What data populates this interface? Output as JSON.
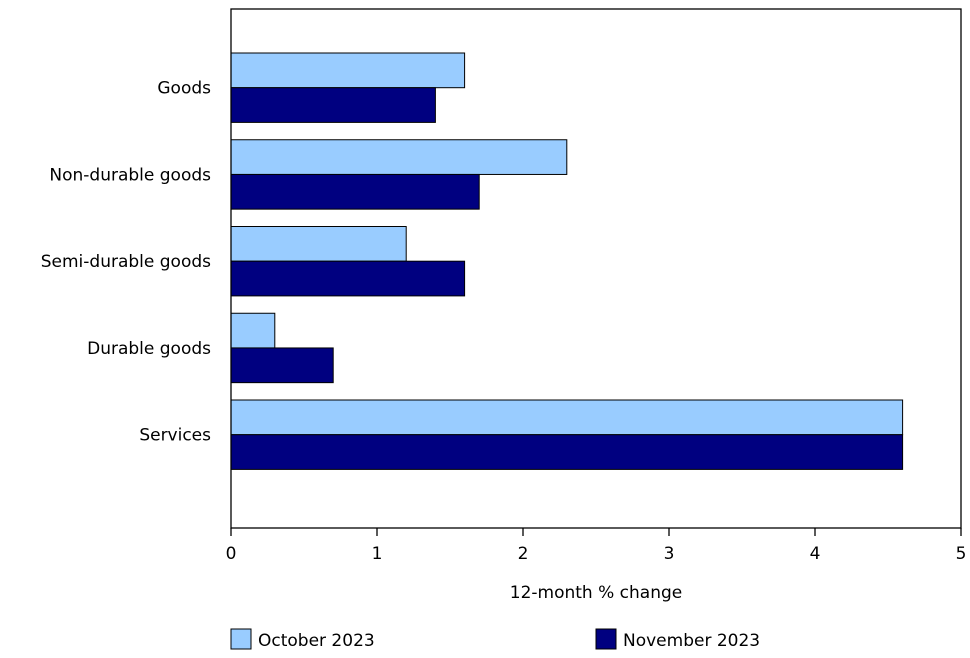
{
  "chart_data": {
    "type": "bar",
    "orientation": "horizontal",
    "categories": [
      "Goods",
      "Non-durable goods",
      "Semi-durable goods",
      "Durable goods",
      "Services"
    ],
    "series": [
      {
        "name": "October 2023",
        "color": "#99ccff",
        "values": [
          1.6,
          2.3,
          1.2,
          0.3,
          4.6
        ]
      },
      {
        "name": "November 2023",
        "color": "#000080",
        "values": [
          1.4,
          1.7,
          1.6,
          0.7,
          4.6
        ]
      }
    ],
    "xlabel": "12-month % change",
    "xlim": [
      0,
      5
    ],
    "xticks": [
      "0",
      "1",
      "2",
      "3",
      "4",
      "5"
    ],
    "grid": false,
    "legend_position": "bottom"
  }
}
